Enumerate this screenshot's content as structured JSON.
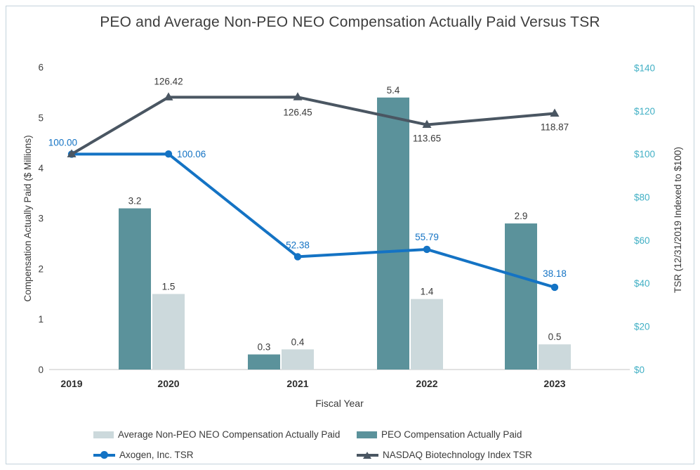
{
  "page": {
    "title": "PEO and Average Non-PEO NEO Compensation Actually Paid Versus TSR"
  },
  "chart_data": {
    "type": "combo_bar_line",
    "title": "PEO and Average Non-PEO NEO Compensation Actually Paid Versus TSR",
    "categories": [
      "2019",
      "2020",
      "2021",
      "2022",
      "2023"
    ],
    "xlabel": "Fiscal Year",
    "left_axis": {
      "label": "Compensation Actually Paid ($ Millions)",
      "tick_values": [
        0,
        1,
        2,
        3,
        4,
        5,
        6
      ],
      "range": [
        0,
        6
      ],
      "applies_to": "bars"
    },
    "right_axis": {
      "label": "TSR (12/31/2019 Indexed to $100)",
      "tick_values": [
        0,
        20,
        40,
        60,
        80,
        100,
        120,
        140
      ],
      "tick_labels": [
        "$0",
        "$20",
        "$40",
        "$60",
        "$80",
        "$100",
        "$120",
        "$140"
      ],
      "range": [
        0,
        140
      ],
      "applies_to": "lines",
      "text_color": "#42B0C5"
    },
    "bar_series": [
      {
        "name": "PEO Compensation Actually Paid",
        "color": "#5B929B",
        "values": [
          null,
          3.2,
          0.3,
          5.4,
          2.9
        ],
        "data_labels": [
          "",
          "3.2",
          "0.3",
          "5.4",
          "2.9"
        ]
      },
      {
        "name": "Average Non-PEO NEO Compensation Actually Paid",
        "color": "#CCD9DC",
        "values": [
          null,
          1.5,
          0.4,
          1.4,
          0.5
        ],
        "data_labels": [
          "",
          "1.5",
          "0.4",
          "1.4",
          "0.5"
        ]
      }
    ],
    "line_series": [
      {
        "name": "Axogen, Inc. TSR",
        "color": "#1473C4",
        "marker": "circle",
        "values": [
          100.0,
          100.06,
          52.38,
          55.79,
          38.18
        ],
        "data_labels": [
          "100.00",
          "100.06",
          "52.38",
          "55.79",
          "38.18"
        ]
      },
      {
        "name": "NASDAQ Biotechnology Index TSR",
        "color": "#4A5662",
        "marker": "triangle",
        "values": [
          100.0,
          126.42,
          126.45,
          113.65,
          118.87
        ],
        "data_labels": [
          "",
          "126.42",
          "126.45",
          "113.65",
          "118.87"
        ]
      }
    ],
    "legend": {
      "position": "bottom",
      "items": [
        {
          "label": "Average Non-PEO NEO Compensation Actually Paid",
          "swatch": "bar",
          "color": "#CCD9DC"
        },
        {
          "label": "PEO Compensation Actually Paid",
          "swatch": "bar",
          "color": "#5B929B"
        },
        {
          "label": "Axogen, Inc. TSR",
          "swatch": "line-circle",
          "color": "#1473C4"
        },
        {
          "label": "NASDAQ Biotechnology Index TSR",
          "swatch": "line-triangle",
          "color": "#4A5662"
        }
      ]
    },
    "grid": "baseline-only",
    "colors": {
      "text": "#3A3A3A",
      "grid": "#D9D9D9",
      "border": "#C3D2DB",
      "background": "#FFFFFF"
    }
  }
}
